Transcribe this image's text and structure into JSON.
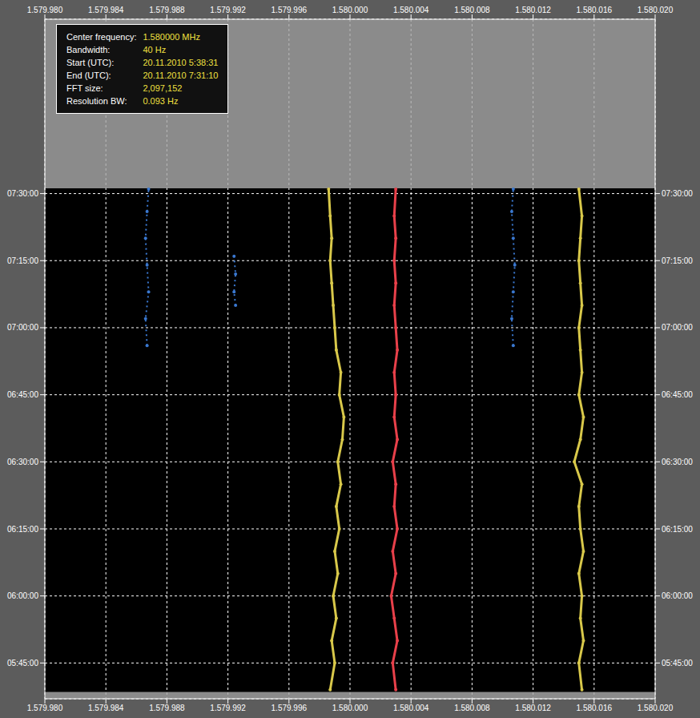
{
  "chart_data": {
    "type": "scatter",
    "xlim": [
      1.57998,
      1.58002
    ],
    "xticks": [
      {
        "value": 1.57998,
        "label": "1.579.980"
      },
      {
        "value": 1.579984,
        "label": "1.579.984"
      },
      {
        "value": 1.579988,
        "label": "1.579.988"
      },
      {
        "value": 1.579992,
        "label": "1.579.992"
      },
      {
        "value": 1.579996,
        "label": "1.579.996"
      },
      {
        "value": 1.58,
        "label": "1.580.000"
      },
      {
        "value": 1.580004,
        "label": "1.580.004"
      },
      {
        "value": 1.580008,
        "label": "1.580.008"
      },
      {
        "value": 1.580012,
        "label": "1.580.012"
      },
      {
        "value": 1.580016,
        "label": "1.580.016"
      },
      {
        "value": 1.58002,
        "label": "1.580.020"
      }
    ],
    "ylim": [
      337,
      489
    ],
    "yticks": [
      {
        "value": 345,
        "label": "05:45:00"
      },
      {
        "value": 360,
        "label": "06:00:00"
      },
      {
        "value": 375,
        "label": "06:15:00"
      },
      {
        "value": 390,
        "label": "06:30:00"
      },
      {
        "value": 405,
        "label": "06:45:00"
      },
      {
        "value": 420,
        "label": "07:00:00"
      },
      {
        "value": 435,
        "label": "07:15:00"
      },
      {
        "value": 450,
        "label": "07:30:00"
      }
    ],
    "grid": true,
    "record_ylim": [
      338.52,
      451.17
    ],
    "info_box": [
      {
        "label": "Center frequency:",
        "value": "1.580000 MHz"
      },
      {
        "label": "Bandwidth:",
        "value": "40 Hz"
      },
      {
        "label": "Start (UTC):",
        "value": "20.11.2010 5:38:31"
      },
      {
        "label": "End (UTC):",
        "value": "20.11.2010 7:31:10"
      },
      {
        "label": "FFT size:",
        "value": "2,097,152"
      },
      {
        "label": "Resolution BW:",
        "value": "0.093 Hz"
      }
    ],
    "series": [
      {
        "color": "#d8c84a",
        "marker": "dot",
        "line_style": "solid",
        "x": [
          1.5799987,
          1.579999,
          1.5799988,
          1.5799991,
          1.5799989,
          1.5799992,
          1.579999,
          1.5799993,
          1.5799991,
          1.5799994,
          1.5799992,
          1.5799995,
          1.5799996,
          1.5799993,
          1.5799994,
          1.5799991,
          1.579999,
          1.5799989,
          1.5799988,
          1.5799987,
          1.5799988,
          1.5799987,
          1.5799986
        ],
        "y": [
          339,
          345,
          350,
          355,
          360,
          365,
          370,
          375,
          380,
          385,
          390,
          395,
          400,
          405,
          410,
          415,
          420,
          425,
          430,
          435,
          440,
          445,
          451
        ]
      },
      {
        "color": "#e8404a",
        "marker": "dot",
        "line_style": "solid",
        "x": [
          1.580003,
          1.5800028,
          1.5800031,
          1.5800029,
          1.5800027,
          1.580003,
          1.5800028,
          1.5800031,
          1.5800029,
          1.580003,
          1.5800028,
          1.5800031,
          1.5800029,
          1.580003,
          1.5800029,
          1.5800031,
          1.580003,
          1.5800029,
          1.580003,
          1.5800029,
          1.580003,
          1.5800029,
          1.580003
        ],
        "y": [
          339,
          345,
          350,
          355,
          360,
          365,
          370,
          375,
          380,
          385,
          390,
          395,
          400,
          405,
          410,
          415,
          420,
          425,
          430,
          435,
          440,
          445,
          451
        ]
      },
      {
        "color": "#d8c84a",
        "marker": "dot",
        "line_style": "solid",
        "x": [
          1.5800152,
          1.580015,
          1.5800153,
          1.5800151,
          1.5800152,
          1.580015,
          1.5800153,
          1.5800151,
          1.580015,
          1.5800152,
          1.5800147,
          1.5800151,
          1.5800153,
          1.580015,
          1.5800152,
          1.5800151,
          1.580015,
          1.5800152,
          1.5800151,
          1.580015,
          1.5800151,
          1.5800152,
          1.580015
        ],
        "y": [
          339,
          345,
          350,
          355,
          360,
          365,
          370,
          375,
          380,
          385,
          390,
          395,
          400,
          405,
          410,
          415,
          420,
          425,
          430,
          435,
          440,
          445,
          451
        ]
      },
      {
        "color": "#3a78d0",
        "marker": "dot",
        "line_style": "dotted",
        "x": [
          1.5799867,
          1.5799866,
          1.5799868,
          1.5799867,
          1.5799866,
          1.5799867,
          1.5799868
        ],
        "y": [
          416,
          422,
          428,
          434,
          440,
          446,
          451
        ]
      },
      {
        "color": "#3a78d0",
        "marker": "dot",
        "line_style": "dotted",
        "x": [
          1.5799925,
          1.5799924,
          1.5799925,
          1.5799924
        ],
        "y": [
          425,
          428,
          432,
          436
        ]
      },
      {
        "color": "#3a78d0",
        "marker": "dot",
        "line_style": "dotted",
        "x": [
          1.5800107,
          1.5800106,
          1.5800107,
          1.5800108,
          1.5800107,
          1.5800106,
          1.5800107
        ],
        "y": [
          416,
          422,
          428,
          434,
          440,
          446,
          451
        ]
      }
    ]
  }
}
